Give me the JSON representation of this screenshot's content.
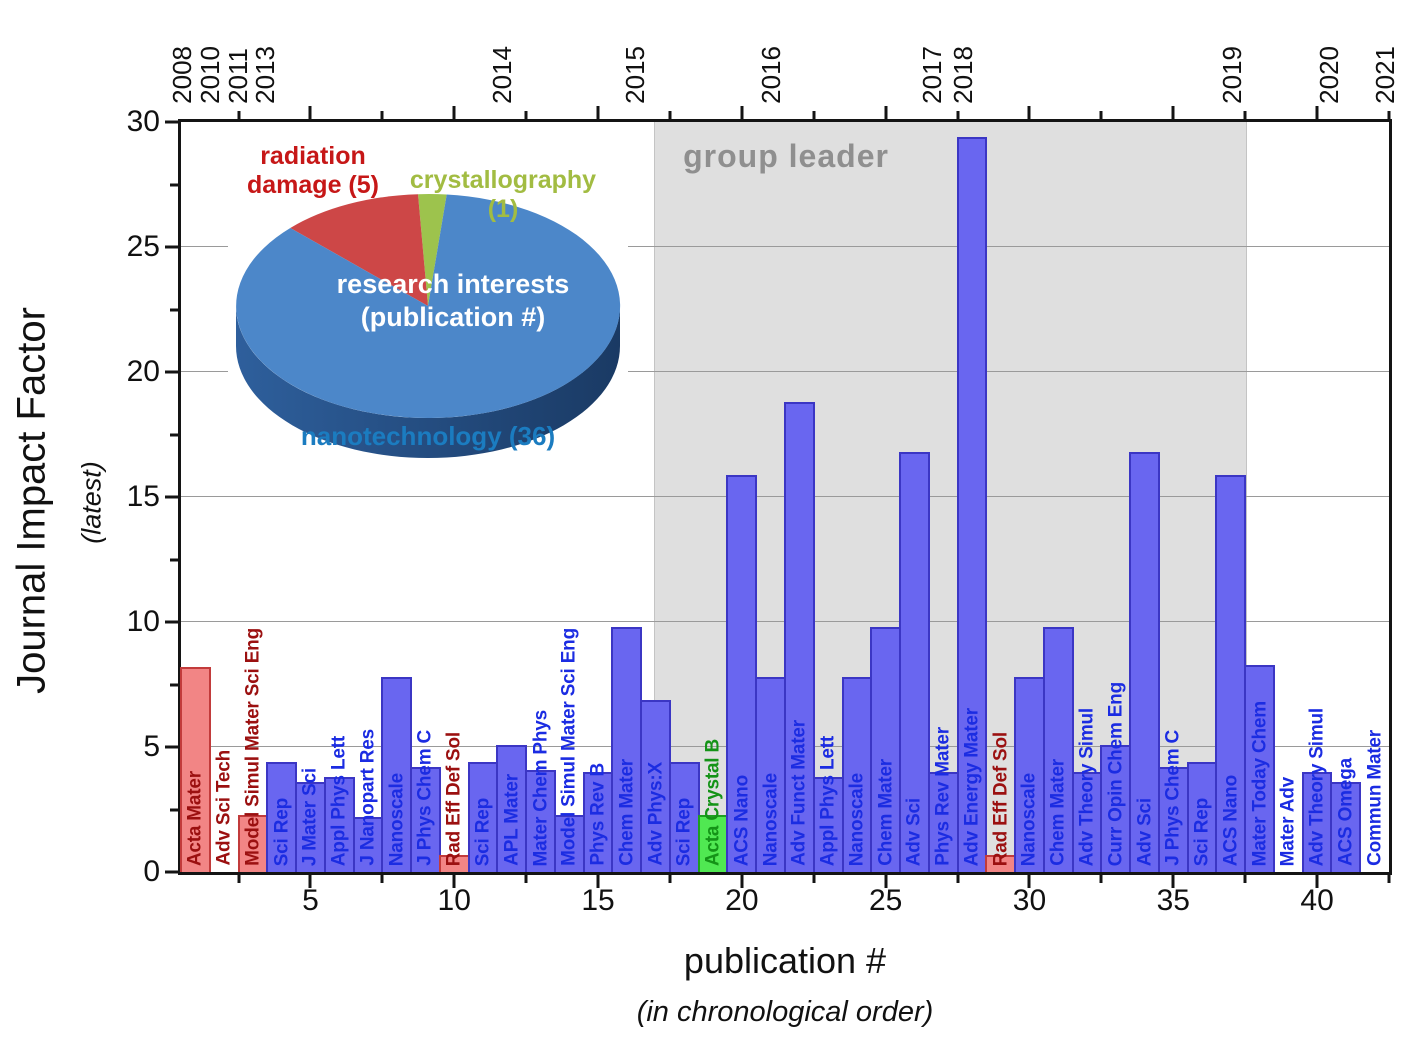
{
  "figure_type": "publication record bar chart with research-interest pie inset",
  "axes": {
    "y_title": "Journal Impact Factor",
    "y_subtitle": "(latest)",
    "x_title": "publication #",
    "x_subtitle": "(in chronological order)"
  },
  "chart_data": [
    {
      "type": "bar",
      "xlabel": "publication #",
      "xlabel_note": "(in chronological order)",
      "ylabel": "Journal Impact Factor",
      "ylabel_note": "(latest)",
      "ylim": [
        0,
        30
      ],
      "yticks": [
        0,
        5,
        10,
        15,
        20,
        25,
        30
      ],
      "xticks": [
        5,
        10,
        15,
        20,
        25,
        30,
        35,
        40
      ],
      "minor_tick_step": 2.5,
      "n_publications": 42,
      "grid_values": [
        5,
        10,
        15,
        20,
        25
      ],
      "legend_position": "none",
      "top_axis_years": [
        {
          "label": "2008",
          "pub": 0.52
        },
        {
          "label": "2010",
          "pub": 1.5
        },
        {
          "label": "2011",
          "pub": 2.48
        },
        {
          "label": "2013",
          "pub": 3.43
        },
        {
          "label": "2014",
          "pub": 11.65
        },
        {
          "label": "2015",
          "pub": 16.3
        },
        {
          "label": "2016",
          "pub": 21.0
        },
        {
          "label": "2017",
          "pub": 26.6
        },
        {
          "label": "2018",
          "pub": 27.7
        },
        {
          "label": "2019",
          "pub": 37.05
        },
        {
          "label": "2020",
          "pub": 40.4
        },
        {
          "label": "2021",
          "pub": 42.35
        }
      ],
      "annotation_band": {
        "label": "group leader",
        "from_pub": 16.95,
        "to_pub": 37.55
      },
      "publications": [
        {
          "n": 1,
          "journal": "Acta Mater",
          "field": "radiation damage",
          "impact_factor": 8.2
        },
        {
          "n": 2,
          "journal": "Adv Sci Tech",
          "field": "radiation damage",
          "impact_factor": 0
        },
        {
          "n": 3,
          "journal": "Model Simul Mater Sci Eng",
          "field": "radiation damage",
          "impact_factor": 2.3
        },
        {
          "n": 4,
          "journal": "Sci Rep",
          "field": "nanotechnology",
          "impact_factor": 4.4
        },
        {
          "n": 5,
          "journal": "J Mater Sci",
          "field": "nanotechnology",
          "impact_factor": 3.6
        },
        {
          "n": 6,
          "journal": "Appl Phys Lett",
          "field": "nanotechnology",
          "impact_factor": 3.8
        },
        {
          "n": 7,
          "journal": "J Nanopart Res",
          "field": "nanotechnology",
          "impact_factor": 2.2
        },
        {
          "n": 8,
          "journal": "Nanoscale",
          "field": "nanotechnology",
          "impact_factor": 7.8
        },
        {
          "n": 9,
          "journal": "J Phys Chem C",
          "field": "nanotechnology",
          "impact_factor": 4.2
        },
        {
          "n": 10,
          "journal": "Rad Eff Def Sol",
          "field": "radiation damage",
          "impact_factor": 0.7
        },
        {
          "n": 11,
          "journal": "Sci Rep",
          "field": "nanotechnology",
          "impact_factor": 4.4
        },
        {
          "n": 12,
          "journal": "APL Mater",
          "field": "nanotechnology",
          "impact_factor": 5.1
        },
        {
          "n": 13,
          "journal": "Mater Chem Phys",
          "field": "nanotechnology",
          "impact_factor": 4.1
        },
        {
          "n": 14,
          "journal": "Model Simul Mater Sci Eng",
          "field": "nanotechnology",
          "impact_factor": 2.3
        },
        {
          "n": 15,
          "journal": "Phys Rev B",
          "field": "nanotechnology",
          "impact_factor": 4.0
        },
        {
          "n": 16,
          "journal": "Chem Mater",
          "field": "nanotechnology",
          "impact_factor": 9.8
        },
        {
          "n": 17,
          "journal": "Adv Phys:X",
          "field": "nanotechnology",
          "impact_factor": 6.9
        },
        {
          "n": 18,
          "journal": "Sci Rep",
          "field": "nanotechnology",
          "impact_factor": 4.4
        },
        {
          "n": 19,
          "journal": "Acta Crystal B",
          "field": "crystallography",
          "impact_factor": 2.3
        },
        {
          "n": 20,
          "journal": "ACS Nano",
          "field": "nanotechnology",
          "impact_factor": 15.9
        },
        {
          "n": 21,
          "journal": "Nanoscale",
          "field": "nanotechnology",
          "impact_factor": 7.8
        },
        {
          "n": 22,
          "journal": "Adv Funct Mater",
          "field": "nanotechnology",
          "impact_factor": 18.8
        },
        {
          "n": 23,
          "journal": "Appl Phys Lett",
          "field": "nanotechnology",
          "impact_factor": 3.8
        },
        {
          "n": 24,
          "journal": "Nanoscale",
          "field": "nanotechnology",
          "impact_factor": 7.8
        },
        {
          "n": 25,
          "journal": "Chem Mater",
          "field": "nanotechnology",
          "impact_factor": 9.8
        },
        {
          "n": 26,
          "journal": "Adv Sci",
          "field": "nanotechnology",
          "impact_factor": 16.8
        },
        {
          "n": 27,
          "journal": "Phys Rev Mater",
          "field": "nanotechnology",
          "impact_factor": 4.0
        },
        {
          "n": 28,
          "journal": "Adv Energy Mater",
          "field": "nanotechnology",
          "impact_factor": 29.4
        },
        {
          "n": 29,
          "journal": "Rad Eff Def Sol",
          "field": "radiation damage",
          "impact_factor": 0.7
        },
        {
          "n": 30,
          "journal": "Nanoscale",
          "field": "nanotechnology",
          "impact_factor": 7.8
        },
        {
          "n": 31,
          "journal": "Chem Mater",
          "field": "nanotechnology",
          "impact_factor": 9.8
        },
        {
          "n": 32,
          "journal": "Adv Theory Simul",
          "field": "nanotechnology",
          "impact_factor": 4.0
        },
        {
          "n": 33,
          "journal": "Curr Opin Chem Eng",
          "field": "nanotechnology",
          "impact_factor": 5.1
        },
        {
          "n": 34,
          "journal": "Adv Sci",
          "field": "nanotechnology",
          "impact_factor": 16.8
        },
        {
          "n": 35,
          "journal": "J Phys Chem C",
          "field": "nanotechnology",
          "impact_factor": 4.2
        },
        {
          "n": 36,
          "journal": "Sci Rep",
          "field": "nanotechnology",
          "impact_factor": 4.4
        },
        {
          "n": 37,
          "journal": "ACS Nano",
          "field": "nanotechnology",
          "impact_factor": 15.9
        },
        {
          "n": 38,
          "journal": "Mater Today Chem",
          "field": "nanotechnology",
          "impact_factor": 8.3
        },
        {
          "n": 39,
          "journal": "Mater Adv",
          "field": "nanotechnology",
          "impact_factor": 0
        },
        {
          "n": 40,
          "journal": "Adv Theory Simul",
          "field": "nanotechnology",
          "impact_factor": 4.0
        },
        {
          "n": 41,
          "journal": "ACS Omega",
          "field": "nanotechnology",
          "impact_factor": 3.6
        },
        {
          "n": 42,
          "journal": "Commun Mater",
          "field": "nanotechnology",
          "impact_factor": 0
        }
      ]
    },
    {
      "type": "pie",
      "title_line1": "research interests",
      "title_line2": "(publication #)",
      "slices": [
        {
          "label": "nanotechnology",
          "count": 36
        },
        {
          "label": "radiation damage",
          "count": 5
        },
        {
          "label": "crystallography",
          "count": 1
        }
      ],
      "labels": {
        "radiation_line1": "radiation",
        "radiation_line2": "damage (5)",
        "crystallography": "crystallography (1)",
        "nanotechnology": "nanotechnology (36)"
      }
    }
  ],
  "colors": {
    "fields": {
      "nanotechnology": {
        "fill": "#6966f0",
        "border": "#3b36c4",
        "label": "#1b2ce2"
      },
      "radiation damage": {
        "fill": "#f28585",
        "border": "#c23b3b",
        "label": "#9b1010"
      },
      "crystallography": {
        "fill": "#50e852",
        "border": "#1da01f",
        "label": "#149317"
      }
    },
    "pie": {
      "nanotechnology_top": "#4c87c9",
      "nanotechnology_side_dark": "#1a3a64",
      "nanotechnology_side_light": "#2e5f9c",
      "radiation": "#cd4747",
      "crystallography": "#9dc34d",
      "label_radiation": "#c61717",
      "label_crystallography": "#a2bc42",
      "label_nanotechnology": "#1b7cc0",
      "center_text": "#ffffff"
    },
    "band_fill": "#dfdfdf",
    "band_label": "#8f8f8f",
    "gridline": "#9a9a9a"
  }
}
